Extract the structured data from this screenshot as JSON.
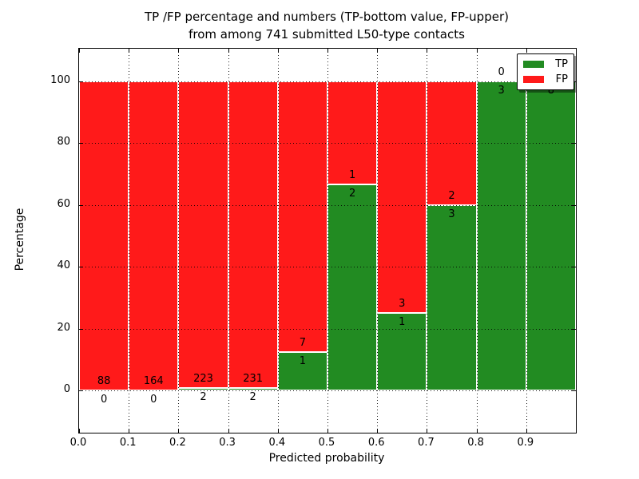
{
  "figure": {
    "title_line1": "TP /FP percentage and numbers (TP-bottom value, FP-upper)",
    "title_line2": "from among 741 submitted L50-type contacts",
    "xlabel": "Predicted probability",
    "ylabel": "Percentage"
  },
  "legend": {
    "items": [
      {
        "label": "TP",
        "color": "#228b22"
      },
      {
        "label": "FP",
        "color": "#ff1a1a"
      }
    ]
  },
  "chart_data": {
    "type": "bar",
    "stacked": true,
    "title": "TP /FP percentage and numbers (TP-bottom value, FP-upper) from among 741 submitted L50-type contacts",
    "xlabel": "Predicted probability",
    "ylabel": "Percentage",
    "total_contacts": 741,
    "x_bins": [
      0.0,
      0.1,
      0.2,
      0.3,
      0.4,
      0.5,
      0.6,
      0.7,
      0.8,
      0.9
    ],
    "bin_width": 0.1,
    "x_tick_labels": [
      "0.0",
      "0.1",
      "0.2",
      "0.3",
      "0.4",
      "0.5",
      "0.6",
      "0.7",
      "0.8",
      "0.9"
    ],
    "y_ticks": [
      0,
      20,
      40,
      60,
      80,
      100
    ],
    "xlim": [
      0.0,
      1.0
    ],
    "ylim": [
      -14,
      111
    ],
    "grid": "dotted",
    "series": [
      {
        "name": "TP",
        "color": "#228b22",
        "position": "bottom",
        "counts": [
          0,
          0,
          2,
          2,
          1,
          2,
          1,
          3,
          3,
          8
        ]
      },
      {
        "name": "FP",
        "color": "#ff1a1a",
        "position": "top",
        "counts": [
          88,
          164,
          223,
          231,
          7,
          1,
          3,
          2,
          0,
          0
        ]
      }
    ],
    "tp_percent": [
      0,
      0,
      0.89,
      0.86,
      12.5,
      66.67,
      25,
      60,
      100,
      100
    ]
  }
}
